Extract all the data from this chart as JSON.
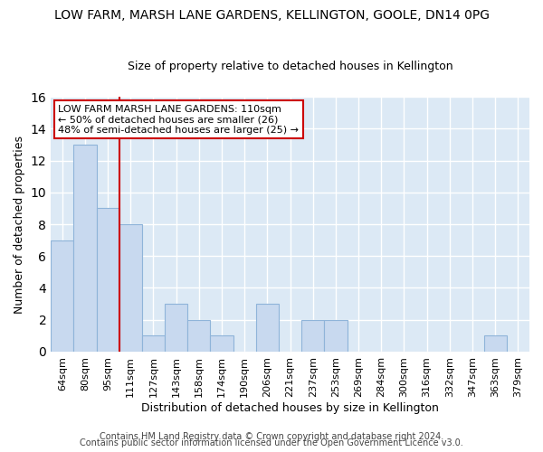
{
  "title": "LOW FARM, MARSH LANE GARDENS, KELLINGTON, GOOLE, DN14 0PG",
  "subtitle": "Size of property relative to detached houses in Kellington",
  "xlabel": "Distribution of detached houses by size in Kellington",
  "ylabel": "Number of detached properties",
  "categories": [
    "64sqm",
    "80sqm",
    "95sqm",
    "111sqm",
    "127sqm",
    "143sqm",
    "158sqm",
    "174sqm",
    "190sqm",
    "206sqm",
    "221sqm",
    "237sqm",
    "253sqm",
    "269sqm",
    "284sqm",
    "300sqm",
    "316sqm",
    "332sqm",
    "347sqm",
    "363sqm",
    "379sqm"
  ],
  "values": [
    7,
    13,
    9,
    8,
    1,
    3,
    2,
    1,
    0,
    3,
    0,
    2,
    2,
    0,
    0,
    0,
    0,
    0,
    0,
    1,
    0
  ],
  "bar_color": "#c8d9ef",
  "bar_edgecolor": "#8fb4d9",
  "redline_x": 3.0,
  "annotation_text": "LOW FARM MARSH LANE GARDENS: 110sqm\n← 50% of detached houses are smaller (26)\n48% of semi-detached houses are larger (25) →",
  "annotation_box_color": "white",
  "annotation_box_edgecolor": "#cc0000",
  "redline_color": "#cc0000",
  "ylim": [
    0,
    16
  ],
  "yticks": [
    0,
    2,
    4,
    6,
    8,
    10,
    12,
    14,
    16
  ],
  "footer1": "Contains HM Land Registry data © Crown copyright and database right 2024.",
  "footer2": "Contains public sector information licensed under the Open Government Licence v3.0.",
  "fig_bg_color": "#ffffff",
  "plot_bg_color": "#dce9f5",
  "grid_color": "#ffffff",
  "title_fontsize": 10,
  "subtitle_fontsize": 9,
  "ylabel_fontsize": 9,
  "xlabel_fontsize": 9,
  "tick_fontsize": 8,
  "footer_fontsize": 7
}
